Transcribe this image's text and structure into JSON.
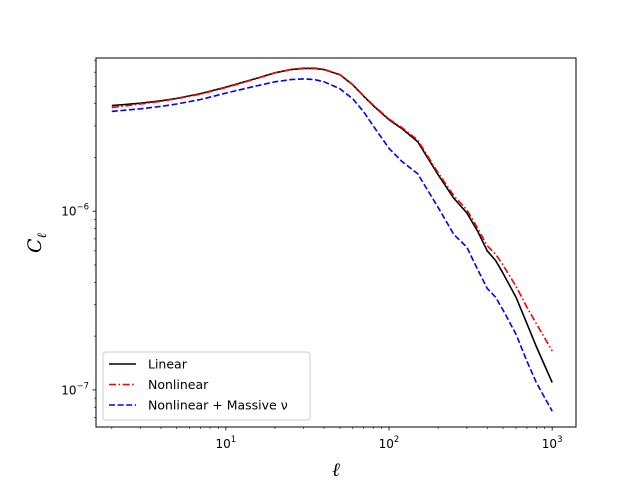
{
  "chart_data": {
    "type": "line",
    "xlabel": "ℓ",
    "ylabel_main": "C",
    "ylabel_sub": "ℓ",
    "xscale": "log",
    "yscale": "log",
    "xlim": [
      1.6,
      1400
    ],
    "ylim": [
      6.2e-08,
      7.2e-06
    ],
    "grid": false,
    "legend_position": "lower-left",
    "x_ticks": [
      {
        "value": 10,
        "base": "10",
        "exp": "1"
      },
      {
        "value": 100,
        "base": "10",
        "exp": "2"
      },
      {
        "value": 1000,
        "base": "10",
        "exp": "3"
      }
    ],
    "y_ticks": [
      {
        "value": 1e-07,
        "base": "10",
        "exp": "−7"
      },
      {
        "value": 1e-06,
        "base": "10",
        "exp": "−6"
      }
    ],
    "series": [
      {
        "name": "Linear",
        "color": "#000000",
        "dash": "solid",
        "x": [
          2,
          3,
          4,
          5,
          7,
          10,
          15,
          20,
          25,
          30,
          35,
          40,
          50,
          60,
          70,
          80,
          100,
          120,
          150,
          200,
          250,
          300,
          350,
          400,
          450,
          500,
          600,
          700,
          800,
          1000
        ],
        "y": [
          3.9e-06,
          4.02e-06,
          4.15e-06,
          4.28e-06,
          4.55e-06,
          4.95e-06,
          5.5e-06,
          5.95e-06,
          6.2e-06,
          6.3e-06,
          6.3e-06,
          6.2e-06,
          5.8e-06,
          5.1e-06,
          4.4e-06,
          3.9e-06,
          3.25e-06,
          2.9e-06,
          2.45e-06,
          1.6e-06,
          1.18e-06,
          9.8e-07,
          7.7e-07,
          6e-07,
          5.3e-07,
          4.5e-07,
          3.3e-07,
          2.35e-07,
          1.75e-07,
          1.1e-07
        ]
      },
      {
        "name": "Nonlinear",
        "color": "#ff0000",
        "dash": "dashdot",
        "x": [
          2,
          3,
          4,
          5,
          7,
          10,
          15,
          20,
          25,
          30,
          35,
          40,
          50,
          60,
          70,
          80,
          100,
          120,
          150,
          200,
          250,
          300,
          350,
          400,
          450,
          500,
          600,
          700,
          800,
          1000
        ],
        "y": [
          3.8e-06,
          3.98e-06,
          4.12e-06,
          4.26e-06,
          4.52e-06,
          4.92e-06,
          5.48e-06,
          5.95e-06,
          6.22e-06,
          6.32e-06,
          6.32e-06,
          6.22e-06,
          5.82e-06,
          5.12e-06,
          4.42e-06,
          3.93e-06,
          3.28e-06,
          2.94e-06,
          2.5e-06,
          1.64e-06,
          1.22e-06,
          1.02e-06,
          8e-07,
          6.4e-07,
          5.75e-07,
          5e-07,
          3.8e-07,
          2.9e-07,
          2.35e-07,
          1.65e-07
        ]
      },
      {
        "name": "Nonlinear + Massive ν",
        "color": "#0000ff",
        "dash": "dashed",
        "x": [
          2,
          3,
          4,
          5,
          7,
          10,
          15,
          20,
          25,
          30,
          35,
          40,
          50,
          60,
          70,
          80,
          100,
          120,
          150,
          200,
          250,
          300,
          350,
          400,
          450,
          500,
          600,
          700,
          800,
          1000
        ],
        "y": [
          3.62e-06,
          3.74e-06,
          3.86e-06,
          3.98e-06,
          4.22e-06,
          4.58e-06,
          5e-06,
          5.3e-06,
          5.45e-06,
          5.5e-06,
          5.45e-06,
          5.3e-06,
          4.85e-06,
          4.25e-06,
          3.6e-06,
          3e-06,
          2.25e-06,
          1.9e-06,
          1.62e-06,
          1.05e-06,
          7.4e-07,
          6.3e-07,
          4.7e-07,
          3.7e-07,
          3.3e-07,
          2.8e-07,
          2.05e-07,
          1.45e-07,
          1.1e-07,
          7.6e-08
        ]
      }
    ]
  }
}
